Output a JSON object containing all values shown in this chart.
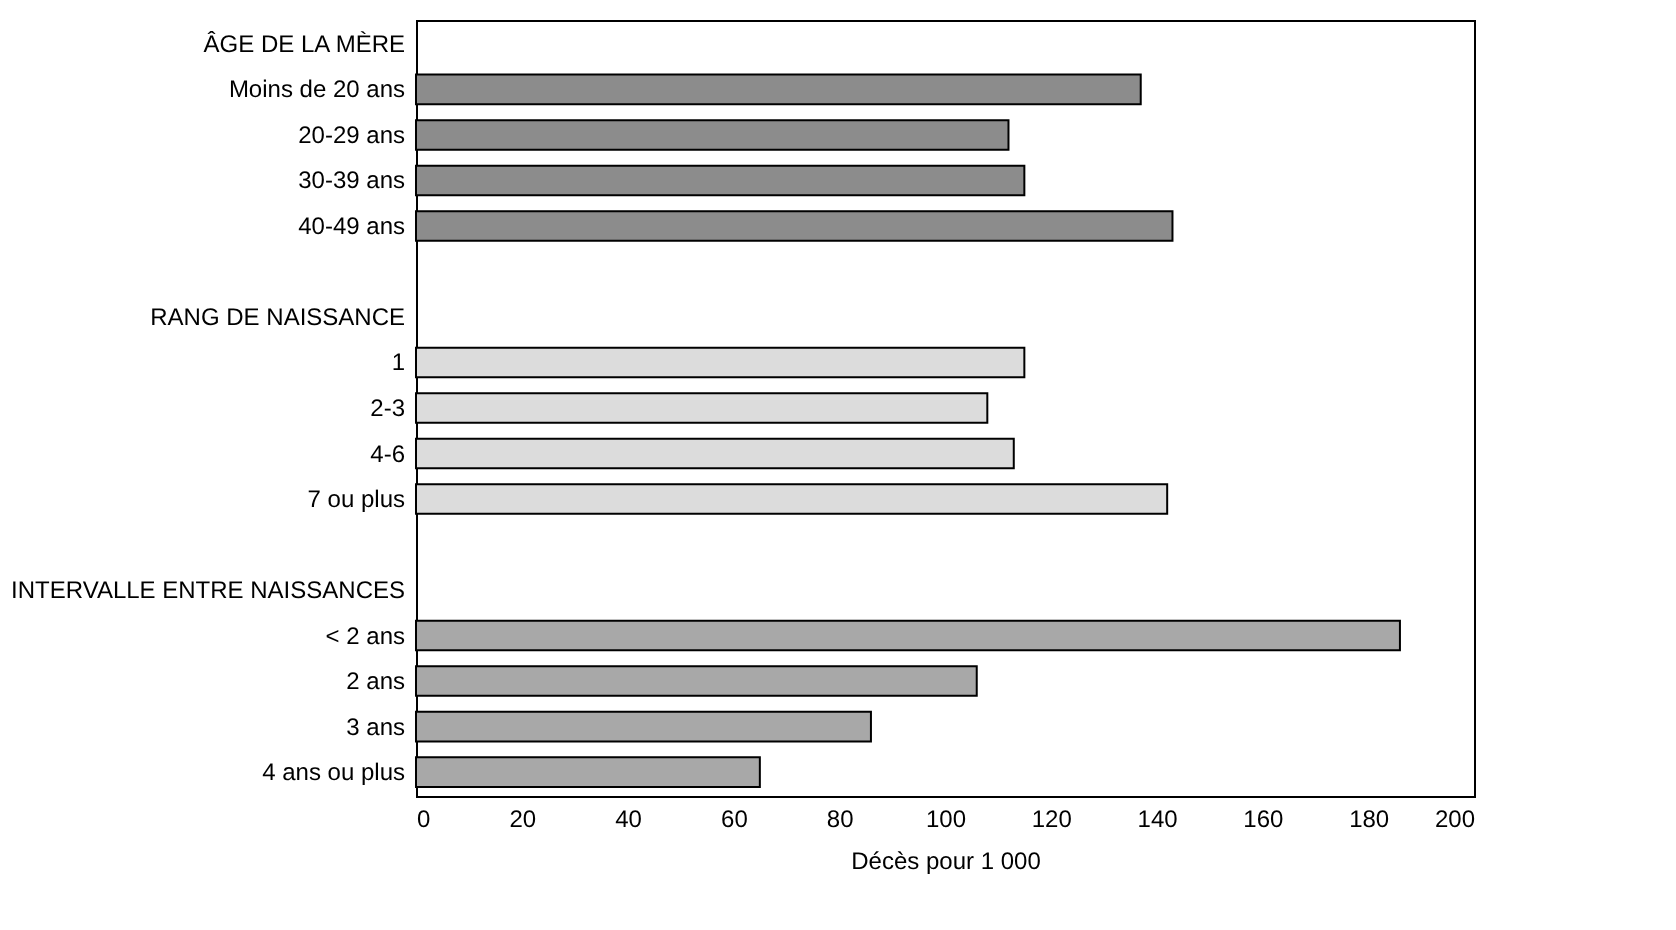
{
  "chart_data": {
    "type": "bar",
    "orientation": "horizontal",
    "xlabel": "Décès pour 1 000",
    "categories": [
      "ÂGE DE LA MÈRE",
      "Moins de 20 ans",
      "20-29 ans",
      "30-39 ans",
      "40-49 ans",
      null,
      "RANG DE NAISSANCE",
      "1",
      "2-3",
      "4-6",
      "7 ou plus",
      null,
      "INTERVALLE ENTRE NAISSANCES",
      "< 2 ans",
      "2 ans",
      "3 ans",
      "4 ans ou plus"
    ],
    "series": [
      {
        "color": "#8c8c8c",
        "values": [
          null,
          137,
          112,
          115,
          143,
          null,
          null,
          null,
          null,
          null,
          null,
          null,
          null,
          null,
          null,
          null,
          null
        ]
      },
      {
        "color": "#dcdcdc",
        "values": [
          null,
          null,
          null,
          null,
          null,
          null,
          null,
          115,
          108,
          113,
          142,
          null,
          null,
          null,
          null,
          null,
          null
        ]
      },
      {
        "color": "#a8a8a8",
        "values": [
          null,
          null,
          null,
          null,
          null,
          null,
          null,
          null,
          null,
          null,
          null,
          null,
          null,
          186,
          106,
          86,
          65
        ]
      }
    ],
    "xlim": [
      0,
      200
    ],
    "xticks": [
      0,
      20,
      40,
      60,
      80,
      100,
      120,
      140,
      160,
      180,
      200
    ]
  }
}
